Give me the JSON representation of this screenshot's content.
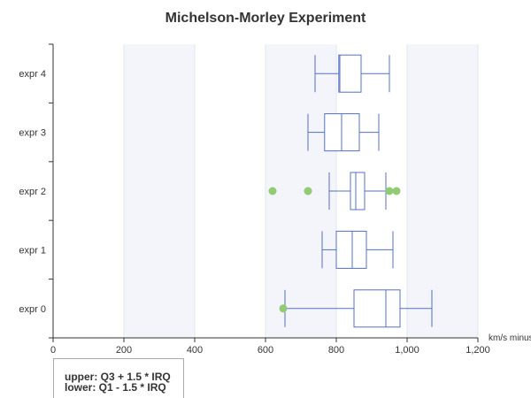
{
  "chart_data": {
    "type": "boxplot",
    "title": "Michelson-Morley Experiment",
    "xlabel": "km/s minus 299,000",
    "ylabel": "",
    "xlim": [
      0,
      1200
    ],
    "x_ticks": [
      0,
      200,
      400,
      600,
      800,
      1000,
      1200
    ],
    "x_tick_labels": [
      "0",
      "200",
      "400",
      "600",
      "800",
      "1,000",
      "1,200"
    ],
    "orientation": "horizontal",
    "background_bands": [
      [
        200,
        400
      ],
      [
        600,
        800
      ],
      [
        1000,
        1200
      ]
    ],
    "colors": {
      "box": "#5470c6",
      "outlier": "#91cc75",
      "band": "#f3f5fb",
      "band_line": "#e0e6f1",
      "axis": "#333333"
    },
    "categories": [
      "expr 0",
      "expr 1",
      "expr 2",
      "expr 3",
      "expr 4"
    ],
    "series": [
      {
        "type": "box",
        "boxes": [
          {
            "category": "expr 0",
            "min": 655,
            "q1": 850,
            "median": 940,
            "q3": 980,
            "max": 1070
          },
          {
            "category": "expr 1",
            "min": 760,
            "q1": 800,
            "median": 845,
            "q3": 885,
            "max": 960
          },
          {
            "category": "expr 2",
            "min": 780,
            "q1": 840,
            "median": 855,
            "q3": 880,
            "max": 940
          },
          {
            "category": "expr 3",
            "min": 720,
            "q1": 767,
            "median": 815,
            "q3": 865,
            "max": 920
          },
          {
            "category": "expr 4",
            "min": 740,
            "q1": 807,
            "median": 810,
            "q3": 870,
            "max": 950
          }
        ]
      },
      {
        "type": "scatter",
        "outliers": [
          {
            "category": "expr 0",
            "value": 650
          },
          {
            "category": "expr 2",
            "value": 620
          },
          {
            "category": "expr 2",
            "value": 720
          },
          {
            "category": "expr 2",
            "value": 720
          },
          {
            "category": "expr 2",
            "value": 950
          },
          {
            "category": "expr 2",
            "value": 970
          }
        ]
      }
    ]
  },
  "legend_note": {
    "upper": "upper: Q3 + 1.5 * IRQ",
    "lower": "lower: Q1 - 1.5 * IRQ"
  }
}
